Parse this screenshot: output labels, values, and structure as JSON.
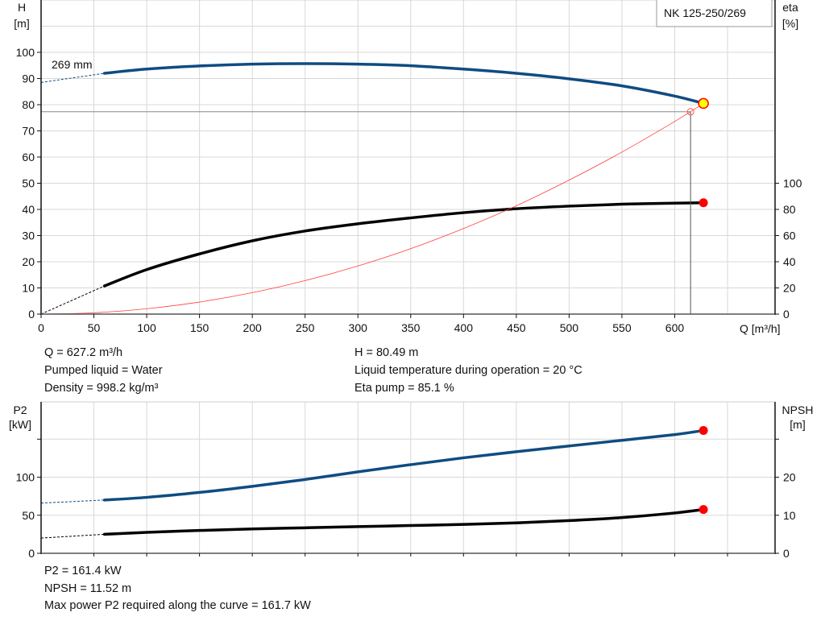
{
  "chart_data": [
    {
      "type": "line",
      "title": "NK 125-250/269",
      "xlabel": "Q [m³/h]",
      "ylabel_left": [
        "H",
        "[m]"
      ],
      "ylabel_right": [
        "eta",
        "[%]"
      ],
      "xlim": [
        0,
        695
      ],
      "x_ticks": [
        0,
        50,
        100,
        150,
        200,
        250,
        300,
        350,
        400,
        450,
        500,
        550,
        600
      ],
      "ylim_left": [
        0,
        120
      ],
      "y_ticks_left": [
        0,
        10,
        20,
        30,
        40,
        50,
        60,
        70,
        80,
        90,
        100
      ],
      "ylim_right": [
        0,
        240
      ],
      "y_ticks_right": [
        0,
        20,
        40,
        60,
        80,
        100
      ],
      "grid": true,
      "curve_label": "269 mm",
      "series": [
        {
          "key": "H",
          "axis": "left",
          "color": "#0f4c81",
          "extrapolated": {
            "x": [
              0,
              60
            ],
            "y": [
              88.5,
              92
            ]
          },
          "x": [
            60,
            100,
            150,
            200,
            250,
            300,
            350,
            400,
            450,
            500,
            550,
            600,
            627.2
          ],
          "y": [
            92,
            93.6,
            94.8,
            95.5,
            95.7,
            95.5,
            94.9,
            93.6,
            92,
            89.9,
            87.2,
            83.3,
            80.49
          ]
        },
        {
          "key": "eta",
          "axis": "right",
          "color": "#000000",
          "extrapolated": {
            "x": [
              0,
              60
            ],
            "y": [
              0,
              21.5
            ]
          },
          "x": [
            60,
            100,
            150,
            200,
            250,
            300,
            350,
            400,
            450,
            500,
            550,
            600,
            627.2
          ],
          "y": [
            21.5,
            34,
            46,
            56,
            63.5,
            69,
            73.5,
            77.5,
            80.5,
            82.5,
            84,
            84.8,
            85.1
          ]
        },
        {
          "key": "system",
          "axis": "left",
          "color": "#ff4040",
          "x": [
            0,
            50,
            100,
            150,
            200,
            250,
            300,
            350,
            400,
            450,
            500,
            550,
            600,
            627.2
          ],
          "y": [
            0,
            0.51,
            2.05,
            4.6,
            8.18,
            12.8,
            18.4,
            25,
            32.7,
            41.4,
            51.2,
            61.9,
            73.6,
            80.49
          ]
        }
      ],
      "duty_point": {
        "q": 627.2,
        "h": 80.49,
        "eta": 85.1,
        "color": "#ffff00"
      },
      "requested_point": {
        "q": 615,
        "h": 77.3
      }
    },
    {
      "type": "line",
      "ylabel_left": [
        "P2",
        "[kW]"
      ],
      "ylabel_right": [
        "NPSH",
        "[m]"
      ],
      "xlim": [
        0,
        695
      ],
      "ylim_left": [
        0,
        199
      ],
      "y_ticks_left": [
        0,
        50,
        100,
        150
      ],
      "y_tick_labels_left": [
        "0",
        "50",
        "100",
        ""
      ],
      "ylim_right": [
        0,
        39.8
      ],
      "y_ticks_right": [
        0,
        10,
        20,
        30
      ],
      "y_tick_labels_right": [
        "0",
        "10",
        "20",
        ""
      ],
      "grid": true,
      "series": [
        {
          "key": "P2",
          "axis": "left",
          "color": "#0f4c81",
          "extrapolated": {
            "x": [
              0,
              60
            ],
            "y": [
              66,
              70
            ]
          },
          "x": [
            60,
            100,
            150,
            200,
            250,
            300,
            350,
            400,
            450,
            500,
            550,
            600,
            627.2
          ],
          "y": [
            70,
            73.5,
            80,
            88,
            97,
            107,
            116.5,
            125.5,
            133.5,
            141,
            148.5,
            156,
            161.4
          ]
        },
        {
          "key": "NPSH",
          "axis": "right",
          "color": "#000000",
          "extrapolated": {
            "x": [
              0,
              60
            ],
            "y": [
              4,
              5
            ]
          },
          "x": [
            60,
            100,
            150,
            200,
            250,
            300,
            350,
            400,
            450,
            500,
            550,
            600,
            627.2
          ],
          "y": [
            5,
            5.5,
            6,
            6.4,
            6.7,
            7,
            7.3,
            7.6,
            8,
            8.6,
            9.4,
            10.6,
            11.52
          ]
        }
      ],
      "duty_point": {
        "q": 627.2,
        "p2": 161.4,
        "npsh": 11.52
      }
    }
  ],
  "info": {
    "q": "Q = 627.2 m³/h",
    "liquid": "Pumped liquid = Water",
    "density": "Density = 998.2 kg/m³",
    "h": "H = 80.49 m",
    "temp": "Liquid temperature during operation = 20 °C",
    "eta": "Eta pump = 85.1 %",
    "p2": "P2 = 161.4 kW",
    "npsh": "NPSH = 11.52 m",
    "maxp2": "Max power P2 required along the curve = 161.7 kW"
  }
}
